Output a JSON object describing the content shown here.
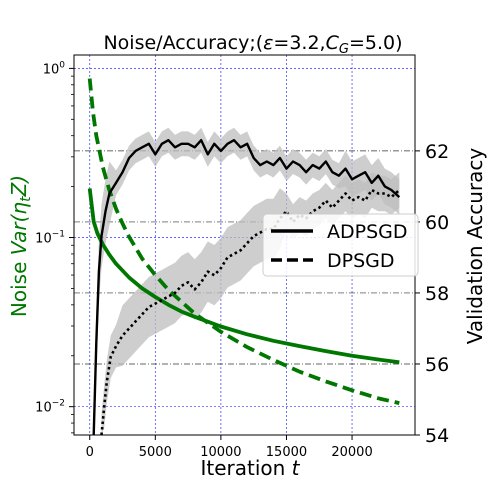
{
  "chart_data": {
    "type": "line",
    "title": "Noise/Accuracy;(ε̄=3.2,C_G=5.0)",
    "title_parts": {
      "prefix": "Noise/Accuracy;(",
      "epsilon": "ε",
      "epsilon_value": "=3.2,",
      "cg_base": "C",
      "cg_sub": "G",
      "cg_value": "=5.0)"
    },
    "xlabel": "Iteration t",
    "xlabel_parts": {
      "text": "Iteration ",
      "var": "t"
    },
    "ylabel_left": "Noise Var(η_t Z)",
    "ylabel_left_parts": {
      "text": "Noise ",
      "var": "Var(η",
      "sub": "t",
      "end": "Z)"
    },
    "ylabel_right": "Validation Accuracy",
    "xlim": [
      -1200,
      24800
    ],
    "ylim_left": [
      0.0068,
      1.2
    ],
    "yscale_left": "log",
    "ylim_right": [
      54,
      64.7
    ],
    "x_ticks": [
      0,
      5000,
      10000,
      15000,
      20000
    ],
    "x_tick_labels": [
      "0",
      "5000",
      "10000",
      "15000",
      "20000"
    ],
    "y_left_ticks": [
      1,
      0.1,
      0.01
    ],
    "y_left_tick_labels": [
      "10",
      "10",
      "10"
    ],
    "y_left_tick_exponents": [
      "0",
      "−1",
      "−2"
    ],
    "y_right_ticks": [
      54,
      56,
      58,
      60,
      62
    ],
    "y_right_tick_labels": [
      "54",
      "56",
      "58",
      "60",
      "62"
    ],
    "grid": true,
    "legend": {
      "placement": "center-right",
      "entries": [
        "ADPSGD",
        "DPSGD"
      ]
    },
    "colors": {
      "noise": "#007700",
      "accuracy": "#000000",
      "band": "#bdbdbd",
      "grid": "#3333ff"
    },
    "series": [
      {
        "name": "ADPSGD",
        "axis": "left",
        "style": "solid",
        "x": [
          0,
          300,
          600,
          1000,
          1500,
          2000,
          3000,
          4000,
          5000,
          6000,
          7000,
          8000,
          10000,
          12000,
          14000,
          16000,
          18000,
          20000,
          22000,
          23600
        ],
        "y": [
          0.195,
          0.124,
          0.105,
          0.091,
          0.079,
          0.07,
          0.058,
          0.05,
          0.0445,
          0.04,
          0.0365,
          0.034,
          0.0298,
          0.0268,
          0.0245,
          0.0228,
          0.0213,
          0.02,
          0.019,
          0.0183
        ]
      },
      {
        "name": "DPSGD",
        "axis": "left",
        "style": "dashed",
        "x": [
          0,
          250,
          500,
          1000,
          1500,
          2000,
          2500,
          3000,
          4000,
          5000,
          6000,
          8000,
          10000,
          12000,
          14000,
          16000,
          18000,
          20000,
          22000,
          23600
        ],
        "y": [
          0.87,
          0.55,
          0.4,
          0.26,
          0.19,
          0.148,
          0.121,
          0.101,
          0.075,
          0.06,
          0.049,
          0.0355,
          0.0277,
          0.0225,
          0.0189,
          0.0161,
          0.0141,
          0.0125,
          0.0112,
          0.0105
        ]
      },
      {
        "name": "ADPSGD",
        "axis": "right",
        "style": "solid",
        "x": [
          300,
          500,
          700,
          900,
          1200,
          1500,
          2000,
          2500,
          3000,
          3500,
          4000,
          4500,
          5000,
          5500,
          6000,
          6500,
          7000,
          7500,
          8000,
          8500,
          9000,
          9500,
          10000,
          10500,
          11000,
          11500,
          12000,
          12500,
          13000,
          13500,
          14000,
          14500,
          15000,
          15500,
          16000,
          16500,
          17000,
          17500,
          18000,
          18500,
          19000,
          19500,
          20000,
          20500,
          21000,
          21500,
          22000,
          22500,
          23000,
          23600
        ],
        "y": [
          54.0,
          56.6,
          58.6,
          59.6,
          60.3,
          60.8,
          61.1,
          61.4,
          61.8,
          62.0,
          62.1,
          62.2,
          61.9,
          62.2,
          62.3,
          62.1,
          62.2,
          62.2,
          62.1,
          62.3,
          61.9,
          62.2,
          62.0,
          62.2,
          62.3,
          62.1,
          62.2,
          61.8,
          61.6,
          61.7,
          61.6,
          61.8,
          61.5,
          61.7,
          61.6,
          61.4,
          61.6,
          61.5,
          61.7,
          61.4,
          61.3,
          61.5,
          61.2,
          61.3,
          61.4,
          61.1,
          61.3,
          61.0,
          60.9,
          60.7
        ]
      },
      {
        "name": "DPSGD",
        "axis": "right",
        "style": "dotted",
        "x": [
          900,
          1100,
          1300,
          1600,
          2000,
          2500,
          3000,
          3500,
          4000,
          4500,
          5000,
          5500,
          6000,
          6500,
          7000,
          7500,
          8000,
          8500,
          9000,
          9500,
          10000,
          10500,
          11000,
          11500,
          12000,
          12500,
          13000,
          13500,
          14000,
          14500,
          15000,
          15500,
          16000,
          16500,
          17000,
          17500,
          18000,
          18500,
          19000,
          19500,
          20000,
          20500,
          21000,
          21500,
          22000,
          22500,
          23000,
          23600
        ],
        "y": [
          54.0,
          54.8,
          55.5,
          56.2,
          56.5,
          56.8,
          57.0,
          57.2,
          57.4,
          57.6,
          57.7,
          57.8,
          57.9,
          58.0,
          58.2,
          58.3,
          58.1,
          58.3,
          58.6,
          58.5,
          58.7,
          59.0,
          59.1,
          59.2,
          59.4,
          59.6,
          59.7,
          59.8,
          59.8,
          60.1,
          60.3,
          60.0,
          60.2,
          60.1,
          60.3,
          60.4,
          60.6,
          60.4,
          60.6,
          60.8,
          60.6,
          60.7,
          60.6,
          60.9,
          60.8,
          60.8,
          60.7,
          60.9
        ]
      }
    ]
  }
}
